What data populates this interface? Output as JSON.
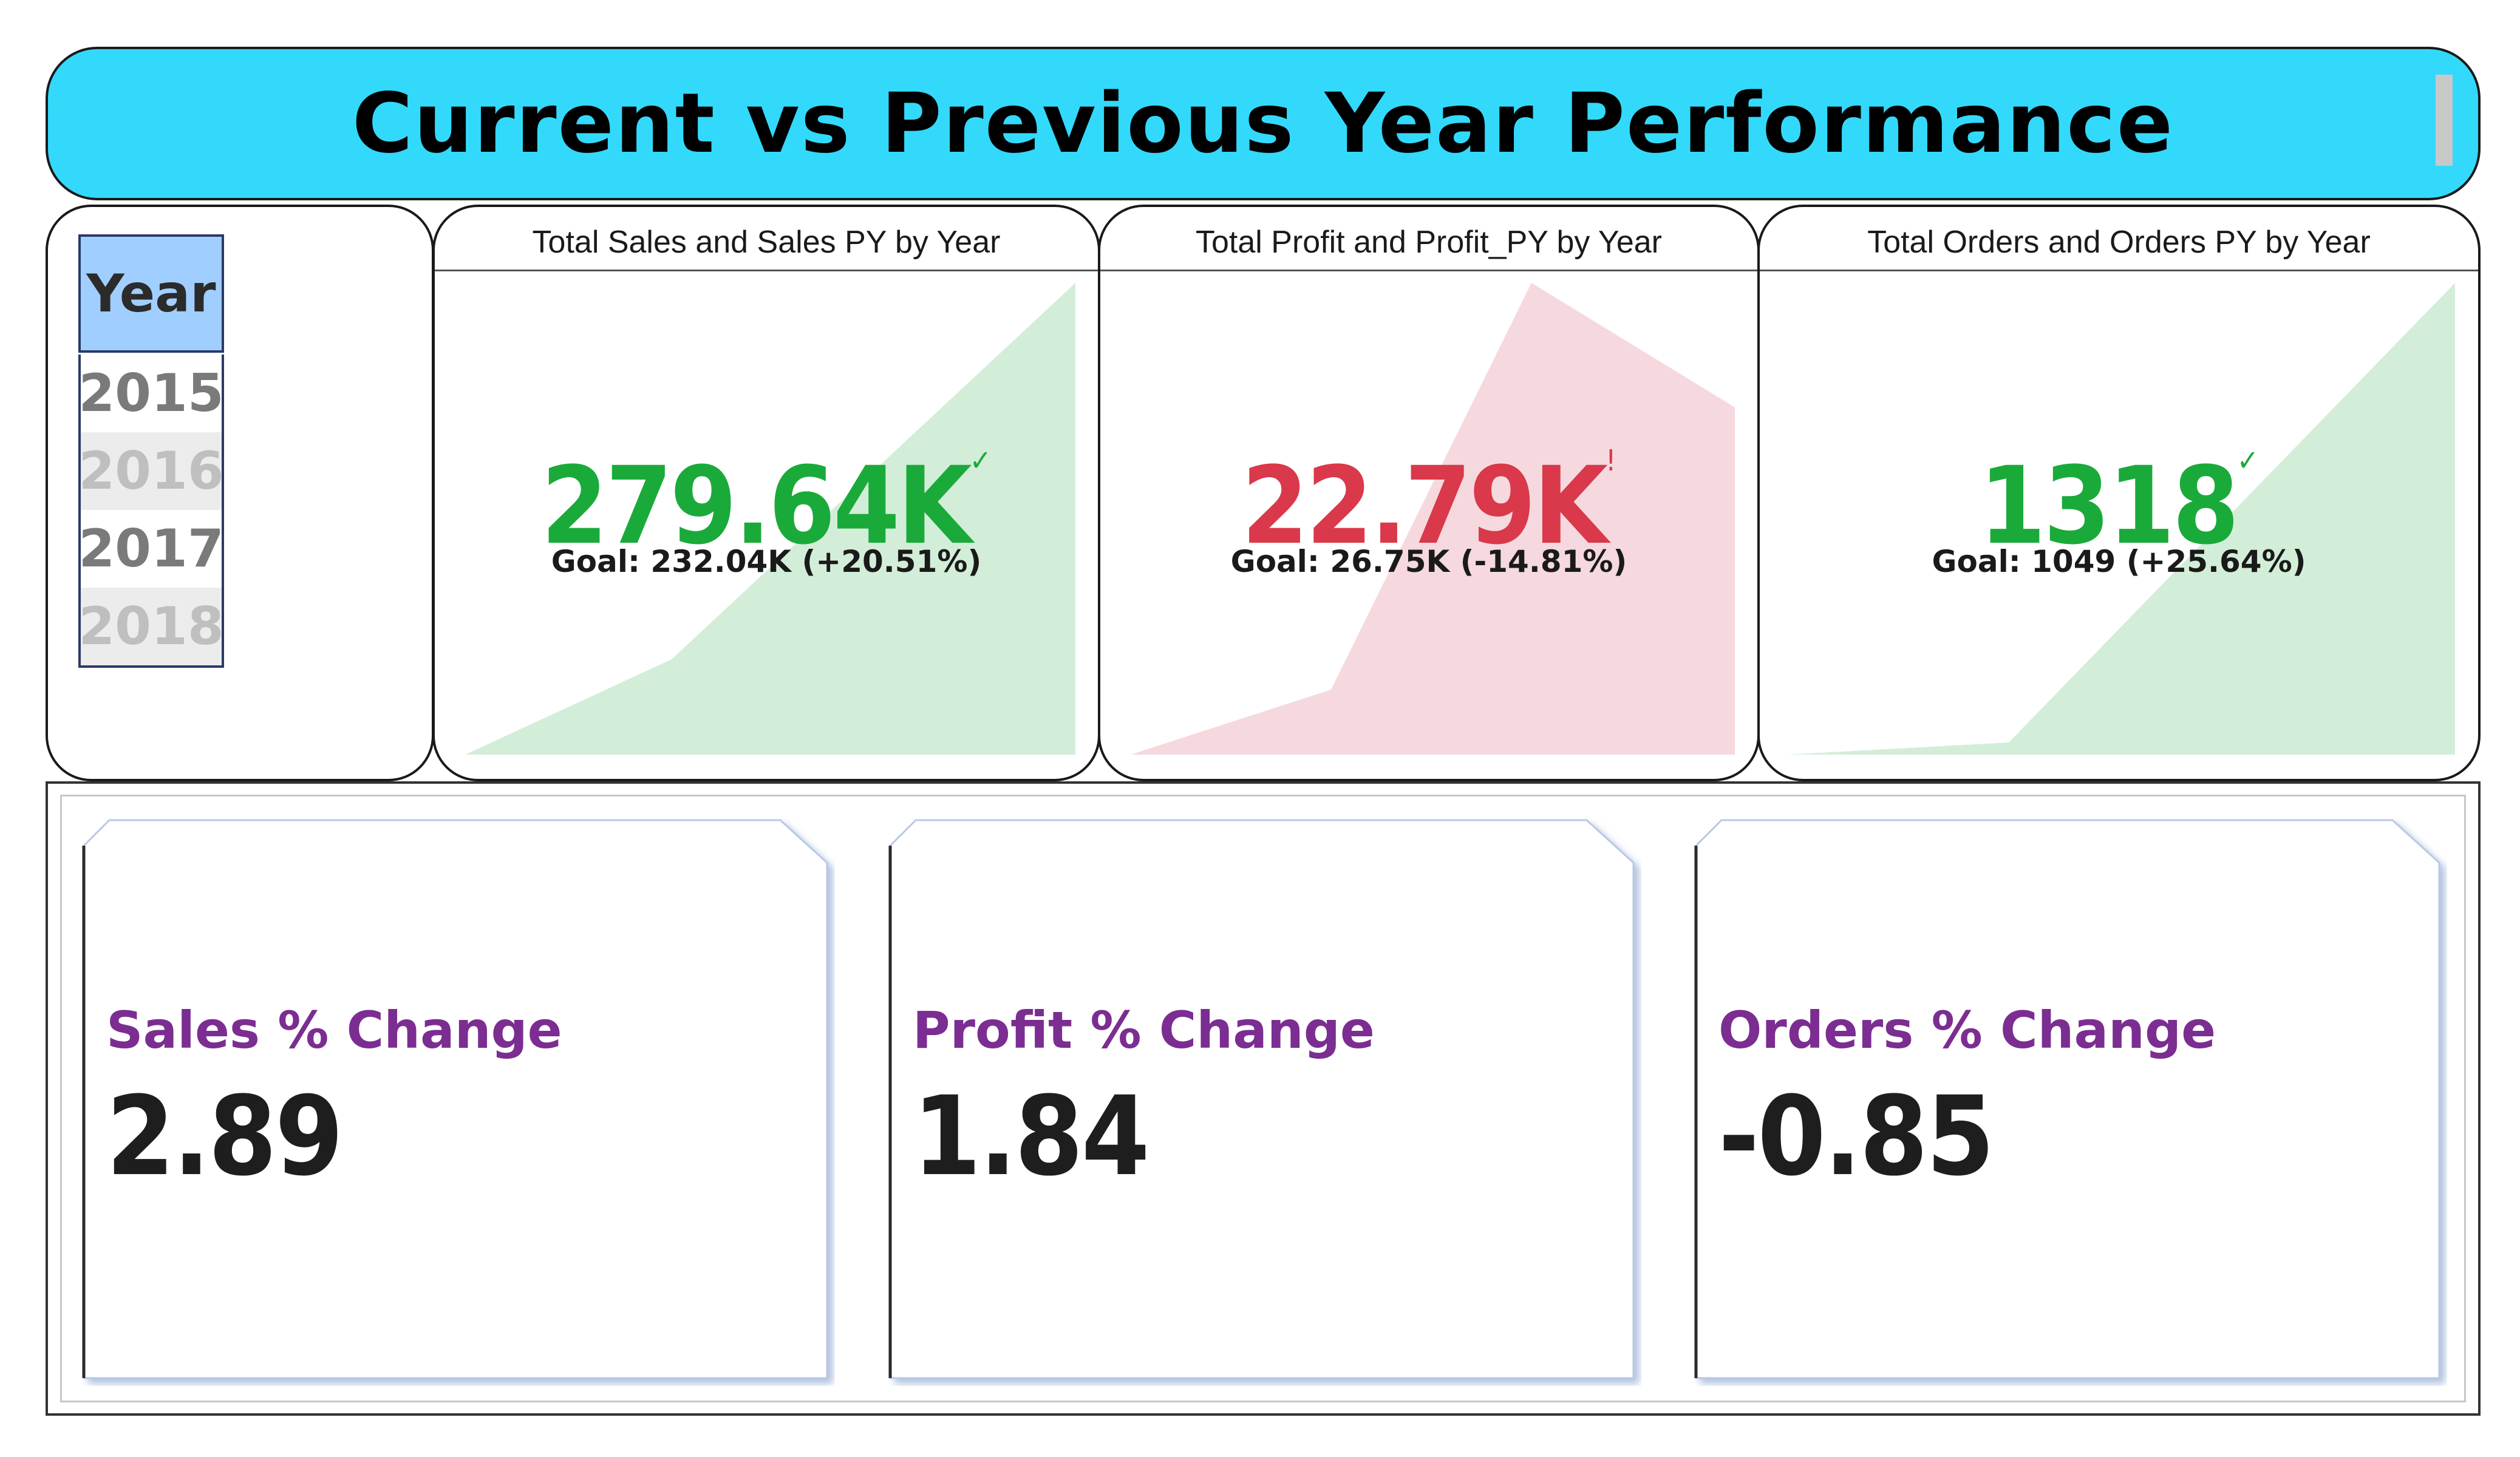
{
  "header": {
    "title": "Current vs Previous Year Performance"
  },
  "slicer": {
    "header": "Year",
    "items": [
      {
        "label": "2015",
        "selected": true
      },
      {
        "label": "2016",
        "selected": false
      },
      {
        "label": "2017",
        "selected": true
      },
      {
        "label": "2018",
        "selected": false
      }
    ]
  },
  "kpis": [
    {
      "title": "Total Sales and Sales PY by Year",
      "value": "279.64K",
      "goal": "Goal: 232.04K (+20.51%)",
      "status": "good",
      "color": "#1aaa3a"
    },
    {
      "title": "Total Profit and Profit_PY by Year",
      "value": "22.79K",
      "goal": "Goal: 26.75K (-14.81%)",
      "status": "bad",
      "color": "#d9394a"
    },
    {
      "title": "Total Orders and Orders PY by Year",
      "value": "1318",
      "goal": "Goal: 1049 (+25.64%)",
      "status": "good",
      "color": "#1aaa3a"
    }
  ],
  "changes": [
    {
      "label": "Sales % Change",
      "value": "2.89"
    },
    {
      "label": "Profit % Change",
      "value": "1.84"
    },
    {
      "label": "Orders % Change",
      "value": "-0.85"
    }
  ],
  "colors": {
    "banner": "#33d9fb",
    "good_fill": "#d3eed8",
    "bad_fill": "#f5d9de",
    "change_label": "#7b2d91",
    "slicer_header": "#a0cfff"
  }
}
